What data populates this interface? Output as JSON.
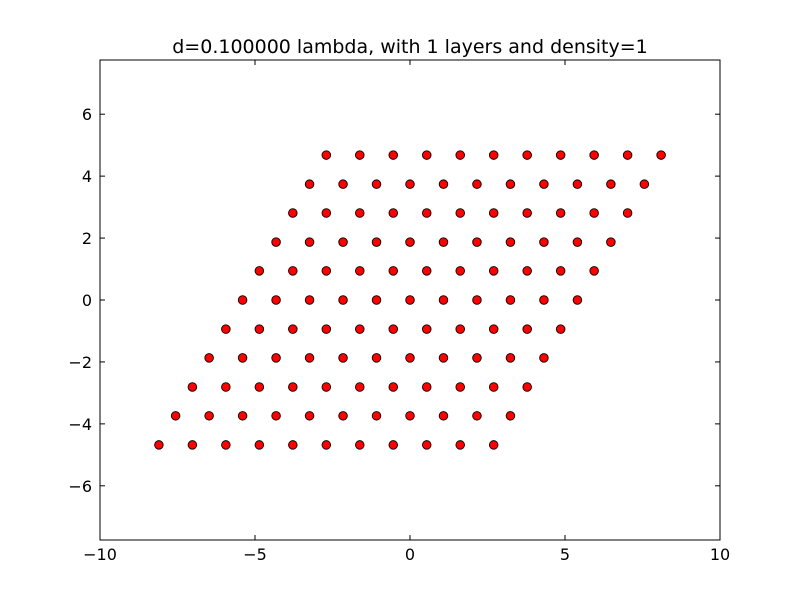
{
  "colors": {
    "marker_fill": "#ff0000",
    "marker_edge": "#000000",
    "axes": "#000000",
    "background": "#ffffff"
  },
  "chart_data": {
    "type": "scatter",
    "title": "d=0.100000 lambda, with 1 layers and density=1",
    "xlabel": "",
    "ylabel": "",
    "xlim": [
      -10,
      10
    ],
    "ylim": [
      -7.75,
      7.75
    ],
    "grid": false,
    "legend": "none",
    "x_ticks": [
      -10,
      -5,
      0,
      5,
      10
    ],
    "x_tick_labels": [
      "−10",
      "−5",
      "0",
      "5",
      "10"
    ],
    "y_ticks": [
      -6,
      -4,
      -2,
      0,
      2,
      4,
      6
    ],
    "y_tick_labels": [
      "−6",
      "−4",
      "−2",
      "0",
      "2",
      "4",
      "6"
    ],
    "lattice": {
      "rows": 11,
      "cols": 11,
      "row_index_range": [
        -5,
        5
      ],
      "col_index_range": [
        -5,
        5
      ],
      "a1": [
        1.08,
        0
      ],
      "a2": [
        0.54,
        0.9353
      ],
      "description": "triangular lattice, point(i,j) = i*a1 + j*a2"
    },
    "series": [
      {
        "name": "lattice points",
        "marker": "circle",
        "x": [
          -8.1,
          -7.02,
          -5.94,
          -4.86,
          -3.78,
          -2.7,
          -1.62,
          -0.54,
          0.54,
          1.62,
          2.7,
          -7.56,
          -6.48,
          -5.4,
          -4.32,
          -3.24,
          -2.16,
          -1.08,
          0.0,
          1.08,
          2.16,
          3.24,
          -7.02,
          -5.94,
          -4.86,
          -3.78,
          -2.7,
          -1.62,
          -0.54,
          0.54,
          1.62,
          2.7,
          3.78,
          -6.48,
          -5.4,
          -4.32,
          -3.24,
          -2.16,
          -1.08,
          0.0,
          1.08,
          2.16,
          3.24,
          4.32,
          -5.94,
          -4.86,
          -3.78,
          -2.7,
          -1.62,
          -0.54,
          0.54,
          1.62,
          2.7,
          3.78,
          4.86,
          -5.4,
          -4.32,
          -3.24,
          -2.16,
          -1.08,
          0.0,
          1.08,
          2.16,
          3.24,
          4.32,
          5.4,
          -4.86,
          -3.78,
          -2.7,
          -1.62,
          -0.54,
          0.54,
          1.62,
          2.7,
          3.78,
          4.86,
          5.94,
          -4.32,
          -3.24,
          -2.16,
          -1.08,
          0.0,
          1.08,
          2.16,
          3.24,
          4.32,
          5.4,
          6.48,
          -3.78,
          -2.7,
          -1.62,
          -0.54,
          0.54,
          1.62,
          2.7,
          3.78,
          4.86,
          5.94,
          7.02,
          -3.24,
          -2.16,
          -1.08,
          0.0,
          1.08,
          2.16,
          3.24,
          4.32,
          5.4,
          6.48,
          7.56,
          -2.7,
          -1.62,
          -0.54,
          0.54,
          1.62,
          2.7,
          3.78,
          4.86,
          5.94,
          7.02,
          8.1
        ],
        "y": [
          -4.68,
          -4.68,
          -4.68,
          -4.68,
          -4.68,
          -4.68,
          -4.68,
          -4.68,
          -4.68,
          -4.68,
          -4.68,
          -3.74,
          -3.74,
          -3.74,
          -3.74,
          -3.74,
          -3.74,
          -3.74,
          -3.74,
          -3.74,
          -3.74,
          -3.74,
          -2.81,
          -2.81,
          -2.81,
          -2.81,
          -2.81,
          -2.81,
          -2.81,
          -2.81,
          -2.81,
          -2.81,
          -2.81,
          -1.87,
          -1.87,
          -1.87,
          -1.87,
          -1.87,
          -1.87,
          -1.87,
          -1.87,
          -1.87,
          -1.87,
          -1.87,
          -0.94,
          -0.94,
          -0.94,
          -0.94,
          -0.94,
          -0.94,
          -0.94,
          -0.94,
          -0.94,
          -0.94,
          -0.94,
          0.0,
          0.0,
          0.0,
          0.0,
          0.0,
          0.0,
          0.0,
          0.0,
          0.0,
          0.0,
          0.0,
          0.94,
          0.94,
          0.94,
          0.94,
          0.94,
          0.94,
          0.94,
          0.94,
          0.94,
          0.94,
          0.94,
          1.87,
          1.87,
          1.87,
          1.87,
          1.87,
          1.87,
          1.87,
          1.87,
          1.87,
          1.87,
          1.87,
          2.81,
          2.81,
          2.81,
          2.81,
          2.81,
          2.81,
          2.81,
          2.81,
          2.81,
          2.81,
          2.81,
          3.74,
          3.74,
          3.74,
          3.74,
          3.74,
          3.74,
          3.74,
          3.74,
          3.74,
          3.74,
          3.74,
          4.68,
          4.68,
          4.68,
          4.68,
          4.68,
          4.68,
          4.68,
          4.68,
          4.68,
          4.68,
          4.68
        ]
      }
    ]
  }
}
